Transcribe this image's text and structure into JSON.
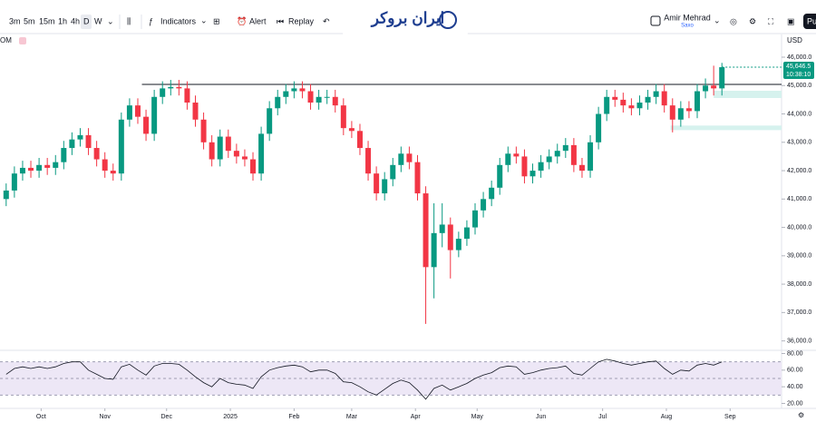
{
  "toolbar": {
    "intervals": [
      "3m",
      "5m",
      "15m",
      "1h",
      "4h",
      "D",
      "W"
    ],
    "indicators": "Indicators",
    "alert": "Alert",
    "replay": "Replay",
    "logo": "ایران بروکر",
    "user": "Amir Mehrad",
    "broker": "Saxo",
    "publish": "Pu"
  },
  "chart_data": {
    "type": "candlestick",
    "symbol": "OM",
    "currency": "USD",
    "color_up": "#089981",
    "color_down": "#f23645",
    "x": [
      13,
      17,
      21,
      25,
      29,
      33,
      37,
      41,
      45,
      49,
      53,
      57,
      61,
      65,
      69,
      73,
      77,
      81,
      85,
      89,
      93,
      97,
      101,
      105,
      109,
      113,
      117,
      121,
      125,
      129,
      133,
      137,
      141,
      145,
      149,
      153,
      157,
      161,
      165,
      169,
      173,
      177,
      181,
      185,
      189,
      193,
      197,
      201,
      205,
      209,
      213,
      217,
      221,
      225,
      229,
      233,
      237,
      241,
      245,
      249,
      253,
      257,
      261,
      265,
      269,
      273,
      277,
      281,
      285,
      289,
      293,
      297,
      301,
      305,
      309,
      313,
      317,
      321,
      325,
      329,
      333,
      337,
      341,
      345,
      349,
      353,
      357,
      361
    ],
    "open": [
      41000,
      41300,
      41900,
      42100,
      42000,
      42200,
      42100,
      42300,
      42800,
      43100,
      43250,
      42800,
      42400,
      42000,
      41900,
      43800,
      44300,
      43900,
      43300,
      44600,
      44900,
      44950,
      44900,
      44400,
      43800,
      43000,
      42400,
      43200,
      42700,
      42500,
      42400,
      41900,
      43300,
      44200,
      44600,
      44800,
      44900,
      44800,
      44400,
      44600,
      44600,
      44300,
      43500,
      43400,
      42800,
      41900,
      41200,
      41700,
      42200,
      42600,
      42300,
      41200,
      38600,
      39800,
      40100,
      39200,
      39600,
      40000,
      40600,
      41000,
      41400,
      42200,
      42600,
      42500,
      41800,
      42000,
      42300,
      42500,
      42700,
      42900,
      42200,
      42000,
      43000,
      44000,
      44600,
      44500,
      44300,
      44200,
      44400,
      44600,
      44800,
      44300,
      43800,
      44200,
      44100,
      44800,
      45000,
      44900
    ],
    "high": [
      41550,
      42150,
      42350,
      42350,
      42450,
      42450,
      42550,
      43050,
      43350,
      43500,
      43500,
      43050,
      42650,
      42250,
      44050,
      44550,
      44550,
      44150,
      44850,
      45150,
      45200,
      45200,
      45150,
      44650,
      44050,
      43250,
      43450,
      43450,
      42950,
      42750,
      42650,
      43550,
      44450,
      44850,
      45050,
      45150,
      45150,
      45050,
      44850,
      44850,
      44850,
      44550,
      43750,
      43650,
      43050,
      42150,
      41950,
      42450,
      42850,
      42850,
      42550,
      41450,
      40850,
      40850,
      40350,
      39850,
      40250,
      40850,
      41250,
      41650,
      42450,
      42850,
      42850,
      42750,
      42250,
      42550,
      42750,
      42950,
      43150,
      43150,
      42450,
      43250,
      44250,
      44850,
      44850,
      44750,
      44550,
      44650,
      44850,
      45050,
      45050,
      44550,
      44450,
      44450,
      45050,
      45250,
      45700,
      45800
    ],
    "low": [
      40750,
      41050,
      41650,
      41750,
      41750,
      41850,
      41850,
      42050,
      42550,
      42850,
      42550,
      42150,
      41750,
      41650,
      41650,
      43550,
      43650,
      43050,
      43050,
      44350,
      44650,
      44650,
      44150,
      43550,
      42750,
      42150,
      42150,
      42450,
      42250,
      42150,
      41650,
      41650,
      43050,
      43950,
      44350,
      44550,
      44550,
      44150,
      44150,
      44350,
      44050,
      43250,
      43150,
      42550,
      41650,
      40950,
      40950,
      41450,
      41950,
      42050,
      40950,
      36600,
      37500,
      39300,
      38200,
      38950,
      39350,
      39750,
      40350,
      40750,
      41150,
      41950,
      42250,
      41550,
      41550,
      41750,
      42050,
      42250,
      42450,
      41950,
      41750,
      41750,
      42750,
      43750,
      44250,
      44050,
      43950,
      43950,
      44150,
      44350,
      44050,
      43350,
      43550,
      43850,
      43850,
      44550,
      44650,
      44650
    ],
    "close": [
      41300,
      41900,
      42100,
      42000,
      42200,
      42100,
      42300,
      42800,
      43100,
      43250,
      42800,
      42400,
      42000,
      41900,
      43800,
      44300,
      43900,
      43300,
      44600,
      44900,
      44950,
      44900,
      44400,
      43800,
      43000,
      42400,
      43200,
      42700,
      42500,
      42400,
      41900,
      43300,
      44200,
      44600,
      44800,
      44900,
      44800,
      44400,
      44600,
      44600,
      44300,
      43500,
      43400,
      42800,
      41900,
      41200,
      41700,
      42200,
      42600,
      42300,
      41200,
      38600,
      39800,
      40100,
      39200,
      39600,
      40000,
      40600,
      41000,
      41400,
      42200,
      42600,
      42500,
      41800,
      42000,
      42300,
      42500,
      42700,
      42900,
      42200,
      42000,
      43000,
      44000,
      44600,
      44500,
      44300,
      44200,
      44400,
      44600,
      44800,
      44300,
      43800,
      44200,
      44100,
      44800,
      45000,
      44900,
      45646.5
    ],
    "xlim": [
      10,
      390
    ],
    "xticks": [
      {
        "value": 30,
        "label": "Oct"
      },
      {
        "value": 61,
        "label": "Nov"
      },
      {
        "value": 91,
        "label": "Dec"
      },
      {
        "value": 122,
        "label": "2025"
      },
      {
        "value": 153,
        "label": "Feb"
      },
      {
        "value": 181,
        "label": "Mar"
      },
      {
        "value": 212,
        "label": "Apr"
      },
      {
        "value": 242,
        "label": "May"
      },
      {
        "value": 273,
        "label": "Jun"
      },
      {
        "value": 303,
        "label": "Jul"
      },
      {
        "value": 334,
        "label": "Aug"
      },
      {
        "value": 365,
        "label": "Sep"
      }
    ],
    "ylim": [
      35700,
      46800
    ],
    "yticks": [
      {
        "value": 36000,
        "label": "36,000.0"
      },
      {
        "value": 37000,
        "label": "37,000.0"
      },
      {
        "value": 38000,
        "label": "38,000.0"
      },
      {
        "value": 39000,
        "label": "39,000.0"
      },
      {
        "value": 40000,
        "label": "40,000.0"
      },
      {
        "value": 41000,
        "label": "41,000.0"
      },
      {
        "value": 42000,
        "label": "42,000.0"
      },
      {
        "value": 43000,
        "label": "43,000.0"
      },
      {
        "value": 44000,
        "label": "44,000.0"
      },
      {
        "value": 45000,
        "label": "45,000.0"
      },
      {
        "value": 46000,
        "label": "46,000.0"
      }
    ],
    "last_price": {
      "value": 45646.5,
      "label": "45,646.5"
    },
    "countdown": "10:38:10",
    "level": 45040,
    "level_start": 79,
    "zones": [
      {
        "x": 357,
        "low": 44561,
        "high": 44817
      },
      {
        "x": 336,
        "low": 43430,
        "high": 43590
      }
    ],
    "rsi": {
      "type": "line",
      "color": "#131722",
      "values": [
        55,
        62,
        64,
        62,
        64,
        62,
        64,
        68,
        70,
        70,
        60,
        55,
        50,
        49,
        64,
        67,
        60,
        54,
        65,
        68,
        68,
        67,
        60,
        52,
        45,
        40,
        50,
        45,
        43,
        42,
        38,
        52,
        60,
        63,
        65,
        66,
        64,
        58,
        60,
        60,
        56,
        46,
        45,
        40,
        34,
        30,
        37,
        44,
        48,
        45,
        36,
        25,
        38,
        42,
        36,
        40,
        44,
        50,
        54,
        57,
        63,
        65,
        64,
        55,
        57,
        60,
        62,
        63,
        65,
        56,
        54,
        62,
        70,
        73,
        71,
        68,
        66,
        68,
        70,
        71,
        62,
        55,
        60,
        59,
        66,
        68,
        66,
        70
      ],
      "ylim": [
        14,
        86
      ],
      "yticks": [
        {
          "value": 20,
          "label": "20.00"
        },
        {
          "value": 40,
          "label": "40.00"
        },
        {
          "value": 60,
          "label": "60.00"
        },
        {
          "value": 80,
          "label": "80.00"
        }
      ],
      "levels": [
        30,
        50,
        70
      ]
    }
  }
}
